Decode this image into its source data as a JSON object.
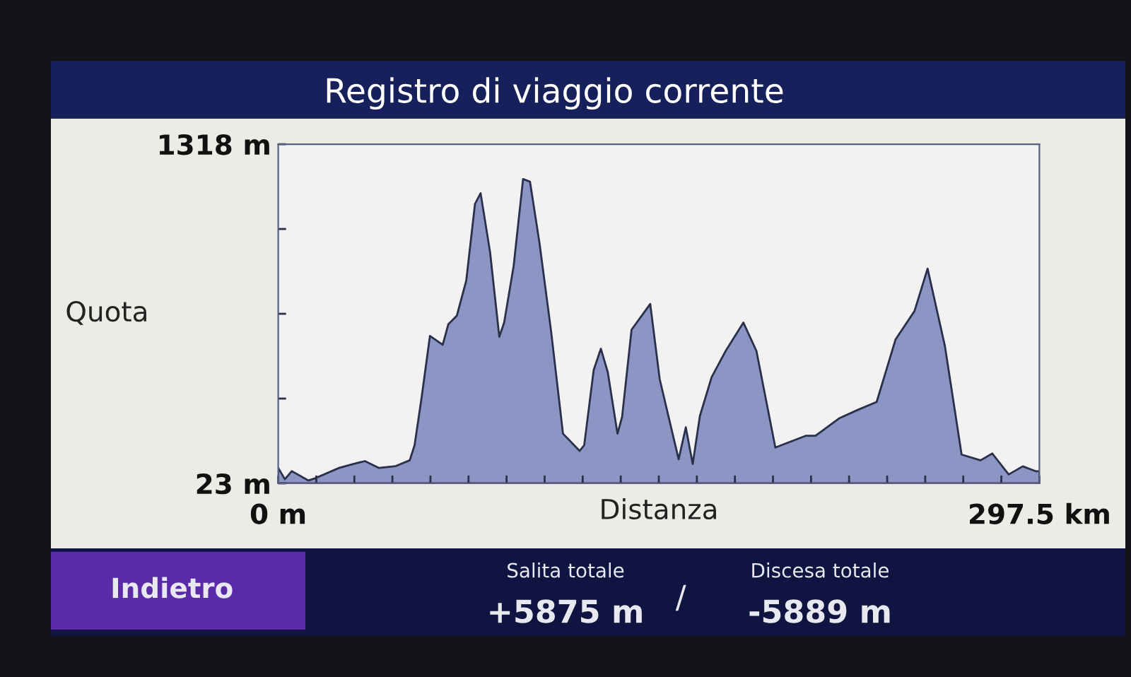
{
  "chart_data": {
    "type": "area",
    "title": "Registro di viaggio corrente",
    "xlabel": "Distanza",
    "ylabel": "Quota",
    "x": [
      0,
      2.6,
      5.3,
      11.8,
      14.6,
      23.8,
      29.3,
      33.9,
      39.4,
      45.9,
      51.4,
      53.3,
      56.0,
      59.3,
      64.3,
      66.5,
      69.8,
      73.5,
      76.9,
      79.1,
      82.8,
      86.4,
      88.3,
      92.0,
      95.7,
      98.4,
      102.1,
      106.7,
      111.3,
      117.8,
      119.6,
      123.3,
      126.1,
      128.8,
      132.6,
      134.4,
      138.1,
      145.4,
      149.1,
      156.5,
      159.3,
      162.0,
      164.8,
      169.4,
      174.9,
      181.8,
      186.9,
      194.3,
      206.3,
      210,
      219.2,
      226.6,
      233.9,
      241.3,
      248.7,
      253.8,
      260.6,
      267.1,
      274.5,
      279.1,
      285.5,
      291.0,
      296.2,
      297.5
    ],
    "series": [
      {
        "color": "#8c95c4",
        "values": [
          82,
          39,
          70,
          34,
          43,
          82,
          97,
          108,
          82,
          89,
          111,
          169,
          348,
          586,
          552,
          631,
          663,
          798,
          1090,
          1131,
          906,
          583,
          637,
          852,
          1185,
          1175,
          942,
          600,
          213,
          147,
          169,
          456,
          537,
          448,
          213,
          277,
          610,
          708,
          421,
          115,
          237,
          97,
          280,
          429,
          529,
          637,
          529,
          160,
          205,
          205,
          271,
          304,
          334,
          573,
          681,
          843,
          546,
          133,
          111,
          137,
          57,
          88,
          69,
          69
        ]
      }
    ],
    "xlim": [
      0,
      297.5
    ],
    "ylim": [
      23,
      1318
    ],
    "xticks": [
      {
        "value": 0,
        "label": "0 m"
      },
      {
        "value": 14.875,
        "label": null
      },
      {
        "value": 29.75,
        "label": null
      },
      {
        "value": 44.625,
        "label": null
      },
      {
        "value": 59.5,
        "label": null
      },
      {
        "value": 74.375,
        "label": null
      },
      {
        "value": 89.25,
        "label": null
      },
      {
        "value": 104.125,
        "label": null
      },
      {
        "value": 119,
        "label": null
      },
      {
        "value": 133.875,
        "label": null
      },
      {
        "value": 148.75,
        "label": null
      },
      {
        "value": 163.625,
        "label": null
      },
      {
        "value": 178.5,
        "label": null
      },
      {
        "value": 193.375,
        "label": null
      },
      {
        "value": 208.25,
        "label": null
      },
      {
        "value": 223.125,
        "label": null
      },
      {
        "value": 238,
        "label": null
      },
      {
        "value": 252.875,
        "label": null
      },
      {
        "value": 267.75,
        "label": null
      },
      {
        "value": 282.625,
        "label": null
      },
      {
        "value": 297.5,
        "label": "297.5 km"
      }
    ],
    "yticks": [
      {
        "value": 23,
        "label": "23 m"
      },
      {
        "value": 346.75,
        "label": null
      },
      {
        "value": 670.5,
        "label": null
      },
      {
        "value": 994.25,
        "label": null
      },
      {
        "value": 1318,
        "label": "1318 m"
      }
    ],
    "grid": false,
    "legend": false,
    "annotations": [
      "Indietro",
      "Salita totale",
      "+5875 m",
      "/",
      "Discesa totale",
      "-5889 m"
    ]
  }
}
